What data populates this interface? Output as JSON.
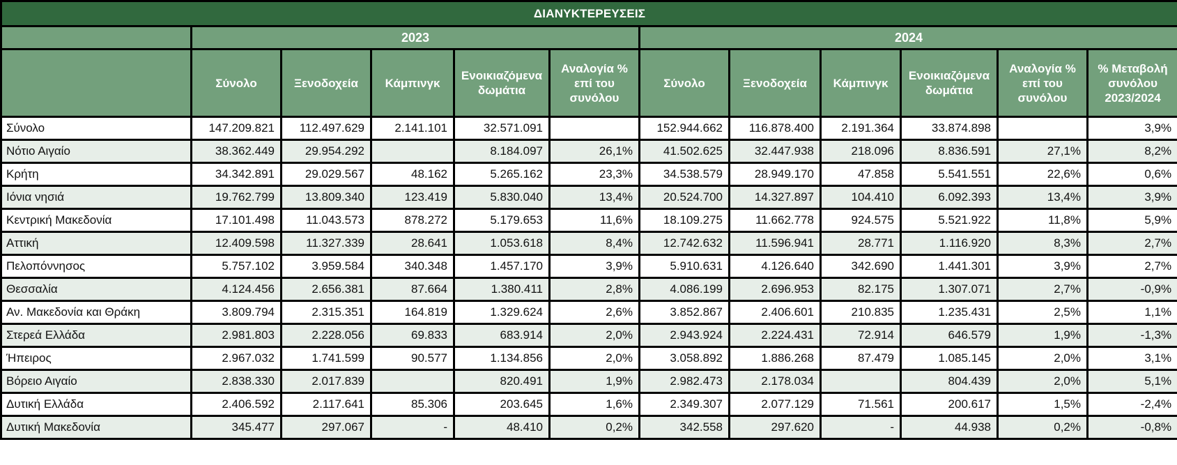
{
  "table": {
    "title": "ΔΙΑΝΥΚΤΕΡΕΥΣΕΙΣ",
    "years": [
      "2023",
      "2024"
    ],
    "columns_2023": [
      "Σύνολο",
      "Ξενοδοχεία",
      "Κάμπινγκ",
      "Ενοικιαζόμενα δωμάτια",
      "Αναλογία % επί του συνόλου"
    ],
    "columns_2024": [
      "Σύνολο",
      "Ξενοδοχεία",
      "Κάμπινγκ",
      "Ενοικιαζόμενα δωμάτια",
      "Αναλογία % επί του συνόλου",
      "% Μεταβολή συνόλου 2023/2024"
    ],
    "colors": {
      "title_bg": "#31693e",
      "header_bg": "#73a07c",
      "stripe_bg": "#e7eee8"
    },
    "rows": [
      [
        "Σύνολο",
        "147.209.821",
        "112.497.629",
        "2.141.101",
        "32.571.091",
        "",
        "152.944.662",
        "116.878.400",
        "2.191.364",
        "33.874.898",
        "",
        "3,9%"
      ],
      [
        "Νότιο Αιγαίο",
        "38.362.449",
        "29.954.292",
        "",
        "8.184.097",
        "26,1%",
        "41.502.625",
        "32.447.938",
        "218.096",
        "8.836.591",
        "27,1%",
        "8,2%"
      ],
      [
        "Κρήτη",
        "34.342.891",
        "29.029.567",
        "48.162",
        "5.265.162",
        "23,3%",
        "34.538.579",
        "28.949.170",
        "47.858",
        "5.541.551",
        "22,6%",
        "0,6%"
      ],
      [
        "Ιόνια νησιά",
        "19.762.799",
        "13.809.340",
        "123.419",
        "5.830.040",
        "13,4%",
        "20.524.700",
        "14.327.897",
        "104.410",
        "6.092.393",
        "13,4%",
        "3,9%"
      ],
      [
        "Κεντρική Μακεδονία",
        "17.101.498",
        "11.043.573",
        "878.272",
        "5.179.653",
        "11,6%",
        "18.109.275",
        "11.662.778",
        "924.575",
        "5.521.922",
        "11,8%",
        "5,9%"
      ],
      [
        "Αττική",
        "12.409.598",
        "11.327.339",
        "28.641",
        "1.053.618",
        "8,4%",
        "12.742.632",
        "11.596.941",
        "28.771",
        "1.116.920",
        "8,3%",
        "2,7%"
      ],
      [
        "Πελοπόννησος",
        "5.757.102",
        "3.959.584",
        "340.348",
        "1.457.170",
        "3,9%",
        "5.910.631",
        "4.126.640",
        "342.690",
        "1.441.301",
        "3,9%",
        "2,7%"
      ],
      [
        "Θεσσαλία",
        "4.124.456",
        "2.656.381",
        "87.664",
        "1.380.411",
        "2,8%",
        "4.086.199",
        "2.696.953",
        "82.175",
        "1.307.071",
        "2,7%",
        "-0,9%"
      ],
      [
        "Αν. Μακεδονία και Θράκη",
        "3.809.794",
        "2.315.351",
        "164.819",
        "1.329.624",
        "2,6%",
        "3.852.867",
        "2.406.601",
        "210.835",
        "1.235.431",
        "2,5%",
        "1,1%"
      ],
      [
        "Στερεά Ελλάδα",
        "2.981.803",
        "2.228.056",
        "69.833",
        "683.914",
        "2,0%",
        "2.943.924",
        "2.224.431",
        "72.914",
        "646.579",
        "1,9%",
        "-1,3%"
      ],
      [
        "Ήπειρος",
        "2.967.032",
        "1.741.599",
        "90.577",
        "1.134.856",
        "2,0%",
        "3.058.892",
        "1.886.268",
        "87.479",
        "1.085.145",
        "2,0%",
        "3,1%"
      ],
      [
        "Βόρειο Αιγαίο",
        "2.838.330",
        "2.017.839",
        "",
        "820.491",
        "1,9%",
        "2.982.473",
        "2.178.034",
        "",
        "804.439",
        "2,0%",
        "5,1%"
      ],
      [
        "Δυτική Ελλάδα",
        "2.406.592",
        "2.117.641",
        "85.306",
        "203.645",
        "1,6%",
        "2.349.307",
        "2.077.129",
        "71.561",
        "200.617",
        "1,5%",
        "-2,4%"
      ],
      [
        "Δυτική Μακεδονία",
        "345.477",
        "297.067",
        "-",
        "48.410",
        "0,2%",
        "342.558",
        "297.620",
        "-",
        "44.938",
        "0,2%",
        "-0,8%"
      ]
    ]
  }
}
